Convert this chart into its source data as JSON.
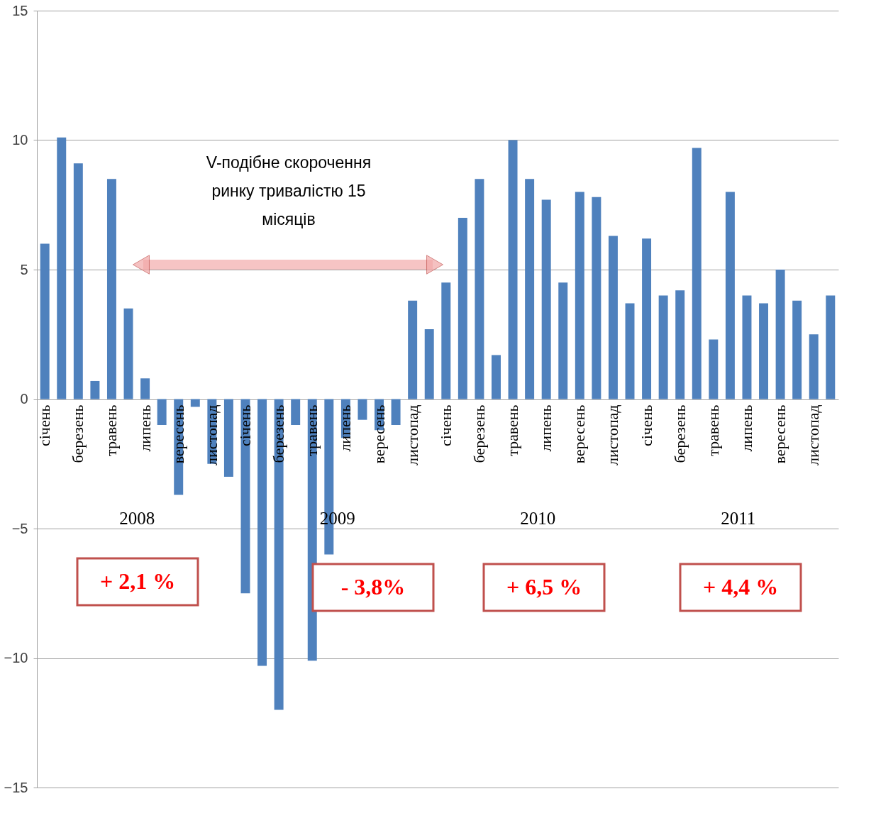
{
  "chart_data": {
    "type": "bar",
    "color": "#4f81bd",
    "categories": [
      "січень",
      null,
      "березень",
      null,
      "травень",
      null,
      "липень",
      null,
      "вересень",
      null,
      "листопад",
      null,
      "січень",
      null,
      "березень",
      null,
      "травень",
      null,
      "липень",
      null,
      "вересень",
      null,
      "листопад",
      null,
      "січень",
      null,
      "березень",
      null,
      "травень",
      null,
      "липень",
      null,
      "вересень",
      null,
      "листопад",
      null,
      "січень",
      null,
      "березень",
      null,
      "травень",
      null,
      "липень",
      null,
      "вересень",
      null,
      "листопад",
      null
    ],
    "values": [
      6.0,
      10.1,
      9.1,
      0.7,
      8.5,
      3.5,
      0.8,
      -1.0,
      -3.7,
      -0.3,
      -2.5,
      -3.0,
      -7.5,
      -10.3,
      -12.0,
      -1.0,
      -10.1,
      -6.0,
      -1.5,
      -0.8,
      -1.2,
      -1.0,
      3.8,
      2.7,
      4.5,
      7.0,
      8.5,
      1.7,
      10.0,
      8.5,
      7.7,
      4.5,
      8.0,
      7.8,
      6.3,
      3.7,
      6.2,
      4.0,
      4.2,
      9.7,
      2.3,
      8.0,
      4.0,
      3.7,
      5.0,
      3.8,
      2.5,
      4.0
    ],
    "ylim": [
      -15,
      15
    ],
    "yticks": [
      -15,
      -10,
      -5,
      0,
      5,
      10,
      15
    ],
    "grid": "y",
    "annotations": [
      "V-подібне скорочення ринку тривалістю 15 місяців",
      "2008",
      "2009",
      "2010",
      "2011",
      "+ 2,1 %",
      "- 3,8%",
      "+ 6,5 %",
      "+ 4,4 %"
    ]
  }
}
